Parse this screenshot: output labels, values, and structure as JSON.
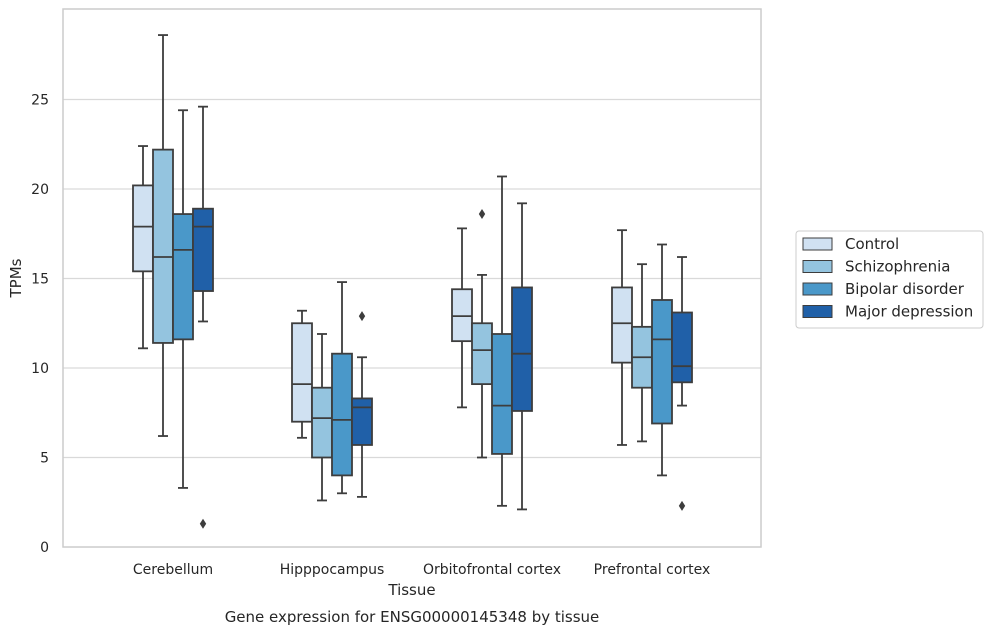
{
  "chart_data": {
    "type": "box",
    "xlabel": "Tissue",
    "ylabel": "TPMs",
    "caption": "Gene expression for ENSG00000145348 by tissue",
    "ylim": [
      0,
      30
    ],
    "yticks": [
      0,
      5,
      10,
      15,
      20,
      25
    ],
    "grid": "horizontal",
    "legend_position": "right",
    "categories": [
      "Cerebellum",
      "Hipppocampus",
      "Orbitofrontal cortex",
      "Prefrontal cortex"
    ],
    "series": [
      {
        "name": "Control",
        "color": "#d0e1f2",
        "boxes": [
          {
            "whislo": 11.1,
            "q1": 15.4,
            "med": 17.9,
            "q3": 20.2,
            "whishi": 22.4,
            "fliers": []
          },
          {
            "whislo": 6.1,
            "q1": 7.0,
            "med": 9.1,
            "q3": 12.5,
            "whishi": 13.2,
            "fliers": []
          },
          {
            "whislo": 7.8,
            "q1": 11.5,
            "med": 12.9,
            "q3": 14.4,
            "whishi": 17.8,
            "fliers": []
          },
          {
            "whislo": 5.7,
            "q1": 10.3,
            "med": 12.5,
            "q3": 14.5,
            "whishi": 17.7,
            "fliers": []
          }
        ]
      },
      {
        "name": "Schizophrenia",
        "color": "#94c4df",
        "boxes": [
          {
            "whislo": 6.2,
            "q1": 11.4,
            "med": 16.2,
            "q3": 22.2,
            "whishi": 28.6,
            "fliers": []
          },
          {
            "whislo": 2.6,
            "q1": 5.0,
            "med": 7.2,
            "q3": 8.9,
            "whishi": 11.9,
            "fliers": []
          },
          {
            "whislo": 5.0,
            "q1": 9.1,
            "med": 11.0,
            "q3": 12.5,
            "whishi": 15.2,
            "fliers": [
              18.6
            ]
          },
          {
            "whislo": 5.9,
            "q1": 8.9,
            "med": 10.6,
            "q3": 12.3,
            "whishi": 15.8,
            "fliers": []
          }
        ]
      },
      {
        "name": "Bipolar disorder",
        "color": "#4a98c9",
        "boxes": [
          {
            "whislo": 3.3,
            "q1": 11.6,
            "med": 16.6,
            "q3": 18.6,
            "whishi": 24.4,
            "fliers": []
          },
          {
            "whislo": 3.0,
            "q1": 4.0,
            "med": 7.1,
            "q3": 10.8,
            "whishi": 14.8,
            "fliers": []
          },
          {
            "whislo": 2.3,
            "q1": 5.2,
            "med": 7.9,
            "q3": 11.9,
            "whishi": 20.7,
            "fliers": []
          },
          {
            "whislo": 4.0,
            "q1": 6.9,
            "med": 11.6,
            "q3": 13.8,
            "whishi": 16.9,
            "fliers": []
          }
        ]
      },
      {
        "name": "Major depression",
        "color": "#2060a8",
        "boxes": [
          {
            "whislo": 12.6,
            "q1": 14.3,
            "med": 17.9,
            "q3": 18.9,
            "whishi": 24.6,
            "fliers": [
              1.3
            ]
          },
          {
            "whislo": 2.8,
            "q1": 5.7,
            "med": 7.8,
            "q3": 8.3,
            "whishi": 10.6,
            "fliers": [
              12.9
            ]
          },
          {
            "whislo": 2.1,
            "q1": 7.6,
            "med": 10.8,
            "q3": 14.5,
            "whishi": 19.2,
            "fliers": []
          },
          {
            "whislo": 7.9,
            "q1": 9.2,
            "med": 10.1,
            "q3": 13.1,
            "whishi": 16.2,
            "fliers": [
              2.3
            ]
          }
        ]
      }
    ]
  }
}
